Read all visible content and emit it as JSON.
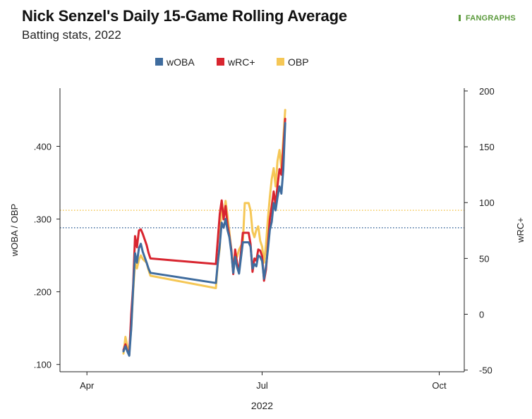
{
  "chart_title": "Nick Senzel's Daily 15-Game Rolling Average",
  "chart_subtitle": "Batting stats, 2022",
  "brand": "FANGRAPHS",
  "colors": {
    "wOBA": "#3f6c9e",
    "wRC+": "#d8252f",
    "OBP": "#f5c756"
  },
  "chart_data": {
    "type": "line",
    "x_label": "2022",
    "x_ticks": [
      {
        "date": "2022-04-01",
        "label": "Apr"
      },
      {
        "date": "2022-07-01",
        "label": "Jul"
      },
      {
        "date": "2022-10-01",
        "label": "Oct"
      }
    ],
    "x_range": [
      "2022-03-18",
      "2022-10-14"
    ],
    "y_left_label": "wOBA / OBP",
    "y_left_range": [
      0.09,
      0.48
    ],
    "y_left_ticks": [
      {
        "value": 0.1,
        "label": ".100"
      },
      {
        "value": 0.2,
        "label": ".200"
      },
      {
        "value": 0.3,
        "label": ".300"
      },
      {
        "value": 0.4,
        "label": ".400"
      }
    ],
    "y_right_label": "wRC+",
    "y_right_range": [
      -51.5,
      202.5
    ],
    "y_right_ticks": [
      {
        "value": -50,
        "label": "-50"
      },
      {
        "value": 0,
        "label": "0"
      },
      {
        "value": 50,
        "label": "50"
      },
      {
        "value": 100,
        "label": "100"
      },
      {
        "value": 150,
        "label": "150"
      },
      {
        "value": 200,
        "label": "200"
      }
    ],
    "legend_position": "top",
    "reference_lines": [
      {
        "series": "OBP",
        "value": 0.312,
        "style": "dotted"
      },
      {
        "series": "wOBA",
        "value": 0.288,
        "style": "dotted"
      }
    ],
    "series": [
      {
        "name": "OBP",
        "axis": "left",
        "points": [
          [
            "2022-04-20",
            0.115
          ],
          [
            "2022-04-21",
            0.138
          ],
          [
            "2022-04-22",
            0.125
          ],
          [
            "2022-04-23",
            0.118
          ],
          [
            "2022-04-24",
            0.15
          ],
          [
            "2022-04-25",
            0.2
          ],
          [
            "2022-04-26",
            0.24
          ],
          [
            "2022-04-27",
            0.232
          ],
          [
            "2022-04-28",
            0.244
          ],
          [
            "2022-04-29",
            0.25
          ],
          [
            "2022-04-30",
            0.245
          ],
          [
            "2022-05-02",
            0.24
          ],
          [
            "2022-05-03",
            0.23
          ],
          [
            "2022-05-04",
            0.222
          ],
          [
            "2022-06-07",
            0.205
          ],
          [
            "2022-06-08",
            0.24
          ],
          [
            "2022-06-09",
            0.26
          ],
          [
            "2022-06-10",
            0.325
          ],
          [
            "2022-06-11",
            0.3
          ],
          [
            "2022-06-12",
            0.325
          ],
          [
            "2022-06-13",
            0.305
          ],
          [
            "2022-06-14",
            0.282
          ],
          [
            "2022-06-15",
            0.258
          ],
          [
            "2022-06-16",
            0.232
          ],
          [
            "2022-06-17",
            0.255
          ],
          [
            "2022-06-18",
            0.248
          ],
          [
            "2022-06-19",
            0.258
          ],
          [
            "2022-06-21",
            0.268
          ],
          [
            "2022-06-22",
            0.322
          ],
          [
            "2022-06-23",
            0.322
          ],
          [
            "2022-06-24",
            0.322
          ],
          [
            "2022-06-25",
            0.312
          ],
          [
            "2022-06-26",
            0.283
          ],
          [
            "2022-06-27",
            0.275
          ],
          [
            "2022-06-28",
            0.285
          ],
          [
            "2022-06-29",
            0.29
          ],
          [
            "2022-06-30",
            0.27
          ],
          [
            "2022-07-01",
            0.262
          ],
          [
            "2022-07-02",
            0.24
          ],
          [
            "2022-07-03",
            0.265
          ],
          [
            "2022-07-04",
            0.3
          ],
          [
            "2022-07-05",
            0.33
          ],
          [
            "2022-07-06",
            0.355
          ],
          [
            "2022-07-07",
            0.37
          ],
          [
            "2022-07-08",
            0.345
          ],
          [
            "2022-07-09",
            0.38
          ],
          [
            "2022-07-10",
            0.395
          ],
          [
            "2022-07-11",
            0.37
          ],
          [
            "2022-07-12",
            0.41
          ],
          [
            "2022-07-13",
            0.45
          ]
        ]
      },
      {
        "name": "wRC+",
        "axis": "right",
        "points": [
          [
            "2022-04-20",
            -32
          ],
          [
            "2022-04-21",
            -27
          ],
          [
            "2022-04-22",
            -33
          ],
          [
            "2022-04-23",
            -36
          ],
          [
            "2022-04-24",
            0
          ],
          [
            "2022-04-25",
            25
          ],
          [
            "2022-04-26",
            70
          ],
          [
            "2022-04-27",
            60
          ],
          [
            "2022-04-28",
            75
          ],
          [
            "2022-04-29",
            76
          ],
          [
            "2022-04-30",
            72
          ],
          [
            "2022-05-02",
            62
          ],
          [
            "2022-05-03",
            55
          ],
          [
            "2022-05-04",
            50
          ],
          [
            "2022-06-07",
            45
          ],
          [
            "2022-06-08",
            67
          ],
          [
            "2022-06-09",
            90
          ],
          [
            "2022-06-10",
            102
          ],
          [
            "2022-06-11",
            85
          ],
          [
            "2022-06-12",
            97
          ],
          [
            "2022-06-13",
            80
          ],
          [
            "2022-06-14",
            70
          ],
          [
            "2022-06-15",
            58
          ],
          [
            "2022-06-16",
            36
          ],
          [
            "2022-06-17",
            58
          ],
          [
            "2022-06-18",
            46
          ],
          [
            "2022-06-19",
            38
          ],
          [
            "2022-06-21",
            73
          ],
          [
            "2022-06-22",
            73
          ],
          [
            "2022-06-23",
            73
          ],
          [
            "2022-06-24",
            73
          ],
          [
            "2022-06-25",
            63
          ],
          [
            "2022-06-26",
            38
          ],
          [
            "2022-06-27",
            50
          ],
          [
            "2022-06-28",
            48
          ],
          [
            "2022-06-29",
            58
          ],
          [
            "2022-06-30",
            57
          ],
          [
            "2022-07-01",
            52
          ],
          [
            "2022-07-02",
            30
          ],
          [
            "2022-07-03",
            40
          ],
          [
            "2022-07-04",
            62
          ],
          [
            "2022-07-05",
            85
          ],
          [
            "2022-07-06",
            97
          ],
          [
            "2022-07-07",
            110
          ],
          [
            "2022-07-08",
            98
          ],
          [
            "2022-07-09",
            115
          ],
          [
            "2022-07-10",
            130
          ],
          [
            "2022-07-11",
            125
          ],
          [
            "2022-07-12",
            148
          ],
          [
            "2022-07-13",
            175
          ]
        ]
      },
      {
        "name": "wOBA",
        "axis": "left",
        "points": [
          [
            "2022-04-20",
            0.118
          ],
          [
            "2022-04-21",
            0.125
          ],
          [
            "2022-04-22",
            0.118
          ],
          [
            "2022-04-23",
            0.112
          ],
          [
            "2022-04-24",
            0.15
          ],
          [
            "2022-04-25",
            0.205
          ],
          [
            "2022-04-26",
            0.253
          ],
          [
            "2022-04-27",
            0.24
          ],
          [
            "2022-04-28",
            0.26
          ],
          [
            "2022-04-29",
            0.266
          ],
          [
            "2022-04-30",
            0.255
          ],
          [
            "2022-05-02",
            0.24
          ],
          [
            "2022-05-03",
            0.232
          ],
          [
            "2022-05-04",
            0.226
          ],
          [
            "2022-06-07",
            0.212
          ],
          [
            "2022-06-08",
            0.24
          ],
          [
            "2022-06-09",
            0.265
          ],
          [
            "2022-06-10",
            0.295
          ],
          [
            "2022-06-11",
            0.288
          ],
          [
            "2022-06-12",
            0.3
          ],
          [
            "2022-06-13",
            0.285
          ],
          [
            "2022-06-14",
            0.275
          ],
          [
            "2022-06-15",
            0.255
          ],
          [
            "2022-06-16",
            0.226
          ],
          [
            "2022-06-17",
            0.248
          ],
          [
            "2022-06-18",
            0.234
          ],
          [
            "2022-06-19",
            0.225
          ],
          [
            "2022-06-21",
            0.268
          ],
          [
            "2022-06-22",
            0.268
          ],
          [
            "2022-06-23",
            0.268
          ],
          [
            "2022-06-24",
            0.268
          ],
          [
            "2022-06-25",
            0.262
          ],
          [
            "2022-06-26",
            0.232
          ],
          [
            "2022-06-27",
            0.238
          ],
          [
            "2022-06-28",
            0.235
          ],
          [
            "2022-06-29",
            0.25
          ],
          [
            "2022-06-30",
            0.248
          ],
          [
            "2022-07-01",
            0.242
          ],
          [
            "2022-07-02",
            0.218
          ],
          [
            "2022-07-03",
            0.235
          ],
          [
            "2022-07-04",
            0.258
          ],
          [
            "2022-07-05",
            0.285
          ],
          [
            "2022-07-06",
            0.296
          ],
          [
            "2022-07-07",
            0.322
          ],
          [
            "2022-07-08",
            0.312
          ],
          [
            "2022-07-09",
            0.33
          ],
          [
            "2022-07-10",
            0.345
          ],
          [
            "2022-07-11",
            0.335
          ],
          [
            "2022-07-12",
            0.368
          ],
          [
            "2022-07-13",
            0.432
          ]
        ]
      }
    ]
  }
}
